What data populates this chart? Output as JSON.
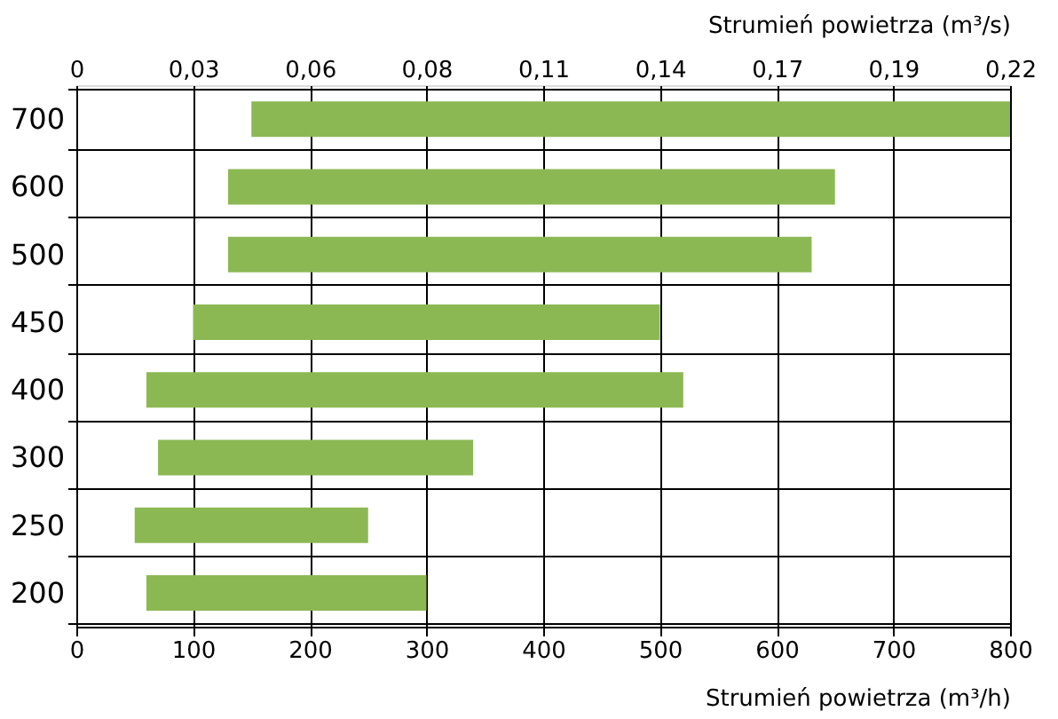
{
  "chart_data": {
    "type": "bar",
    "orientation": "horizontal",
    "xlabel": "Strumień powietrza (m³/h)",
    "x2label": "Strumień powietrza (m³/s)",
    "categories": [
      "700",
      "600",
      "500",
      "450",
      "400",
      "300",
      "250",
      "200"
    ],
    "base": [
      150,
      130,
      130,
      100,
      60,
      70,
      50,
      60
    ],
    "values": [
      650,
      520,
      500,
      400,
      460,
      270,
      200,
      240
    ],
    "color": "#8cb854",
    "xlim": [
      0,
      800
    ],
    "xticks": [
      0,
      100,
      200,
      300,
      400,
      500,
      600,
      700,
      800
    ],
    "x2lim": [
      0,
      0.2222
    ],
    "x2ticks": [
      0,
      {
        "value": 0.0278,
        "label": "0,03"
      },
      {
        "value": 0.0556,
        "label": "0,06"
      },
      {
        "value": 0.0833,
        "label": "0,08"
      },
      {
        "value": 0.1111,
        "label": "0,11"
      },
      {
        "value": 0.1389,
        "label": "0,14"
      },
      {
        "value": 0.1667,
        "label": "0,17"
      },
      {
        "value": 0.1944,
        "label": "0,19"
      },
      {
        "value": 0.2222,
        "label": "0,22"
      }
    ],
    "grid": true
  }
}
